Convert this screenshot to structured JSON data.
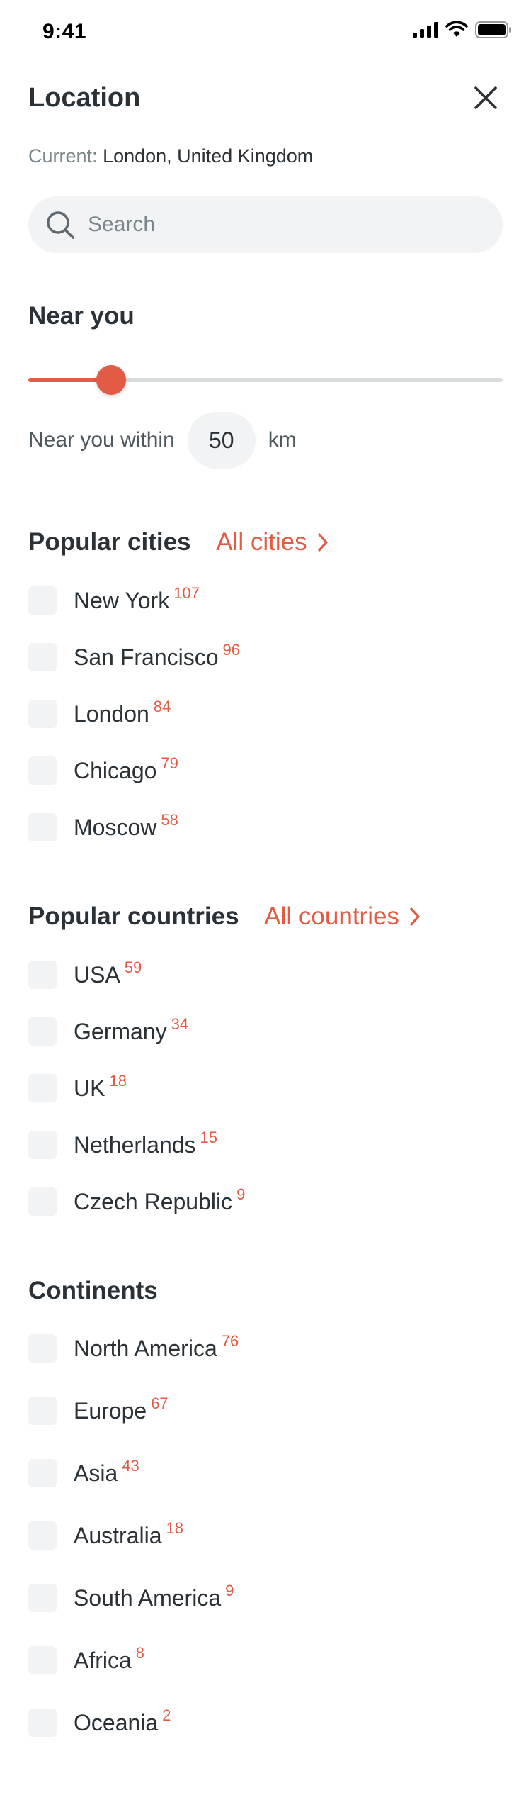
{
  "status_bar": {
    "time": "9:41"
  },
  "header": {
    "title": "Location"
  },
  "current": {
    "label": "Current:",
    "value": "London, United Kingdom"
  },
  "search": {
    "placeholder": "Search"
  },
  "near_you": {
    "title": "Near you",
    "slider_fraction": 0.175,
    "within_label": "Near you within",
    "value": "50",
    "unit": "km"
  },
  "popular_cities": {
    "title": "Popular cities",
    "link": "All cities",
    "items": [
      {
        "label": "New York",
        "count": "107"
      },
      {
        "label": "San Francisco",
        "count": "96"
      },
      {
        "label": "London",
        "count": "84"
      },
      {
        "label": "Chicago",
        "count": "79"
      },
      {
        "label": "Moscow",
        "count": "58"
      }
    ]
  },
  "popular_countries": {
    "title": "Popular countries",
    "link": "All countries",
    "items": [
      {
        "label": "USA",
        "count": "59"
      },
      {
        "label": "Germany",
        "count": "34"
      },
      {
        "label": "UK",
        "count": "18"
      },
      {
        "label": "Netherlands",
        "count": "15"
      },
      {
        "label": "Czech Republic",
        "count": "9"
      }
    ]
  },
  "continents": {
    "title": "Continents",
    "items": [
      {
        "label": "North America",
        "count": "76"
      },
      {
        "label": "Europe",
        "count": "67"
      },
      {
        "label": "Asia",
        "count": "43"
      },
      {
        "label": "Australia",
        "count": "18"
      },
      {
        "label": "South America",
        "count": "9"
      },
      {
        "label": "Africa",
        "count": "8"
      },
      {
        "label": "Oceania",
        "count": "2"
      }
    ]
  },
  "colors": {
    "accent": "#e25c45",
    "text": "#2a3238",
    "muted": "#7b868c",
    "surface": "#f1f3f4"
  },
  "icons": {
    "close": "close-icon",
    "search": "search-icon",
    "chevron": "chevron-right-icon"
  }
}
